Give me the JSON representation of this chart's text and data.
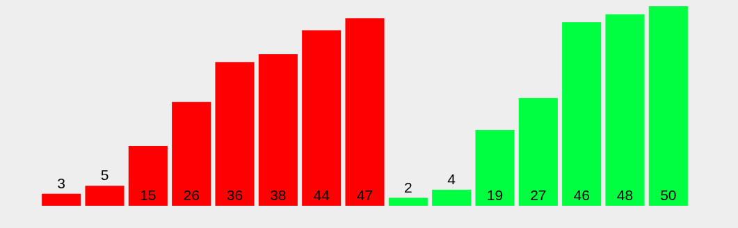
{
  "chart_data": {
    "type": "bar",
    "categories": [
      null,
      null,
      null,
      null,
      null,
      null,
      null,
      null,
      null,
      null,
      null,
      null,
      null,
      null,
      null
    ],
    "values": [
      3,
      5,
      15,
      26,
      36,
      38,
      44,
      47,
      2,
      4,
      19,
      27,
      46,
      48,
      50
    ],
    "colors": [
      "#ff0000",
      "#ff0000",
      "#ff0000",
      "#ff0000",
      "#ff0000",
      "#ff0000",
      "#ff0000",
      "#ff0000",
      "#00ff40",
      "#00ff40",
      "#00ff40",
      "#00ff40",
      "#00ff40",
      "#00ff40",
      "#00ff40"
    ],
    "data_labels": true
  }
}
